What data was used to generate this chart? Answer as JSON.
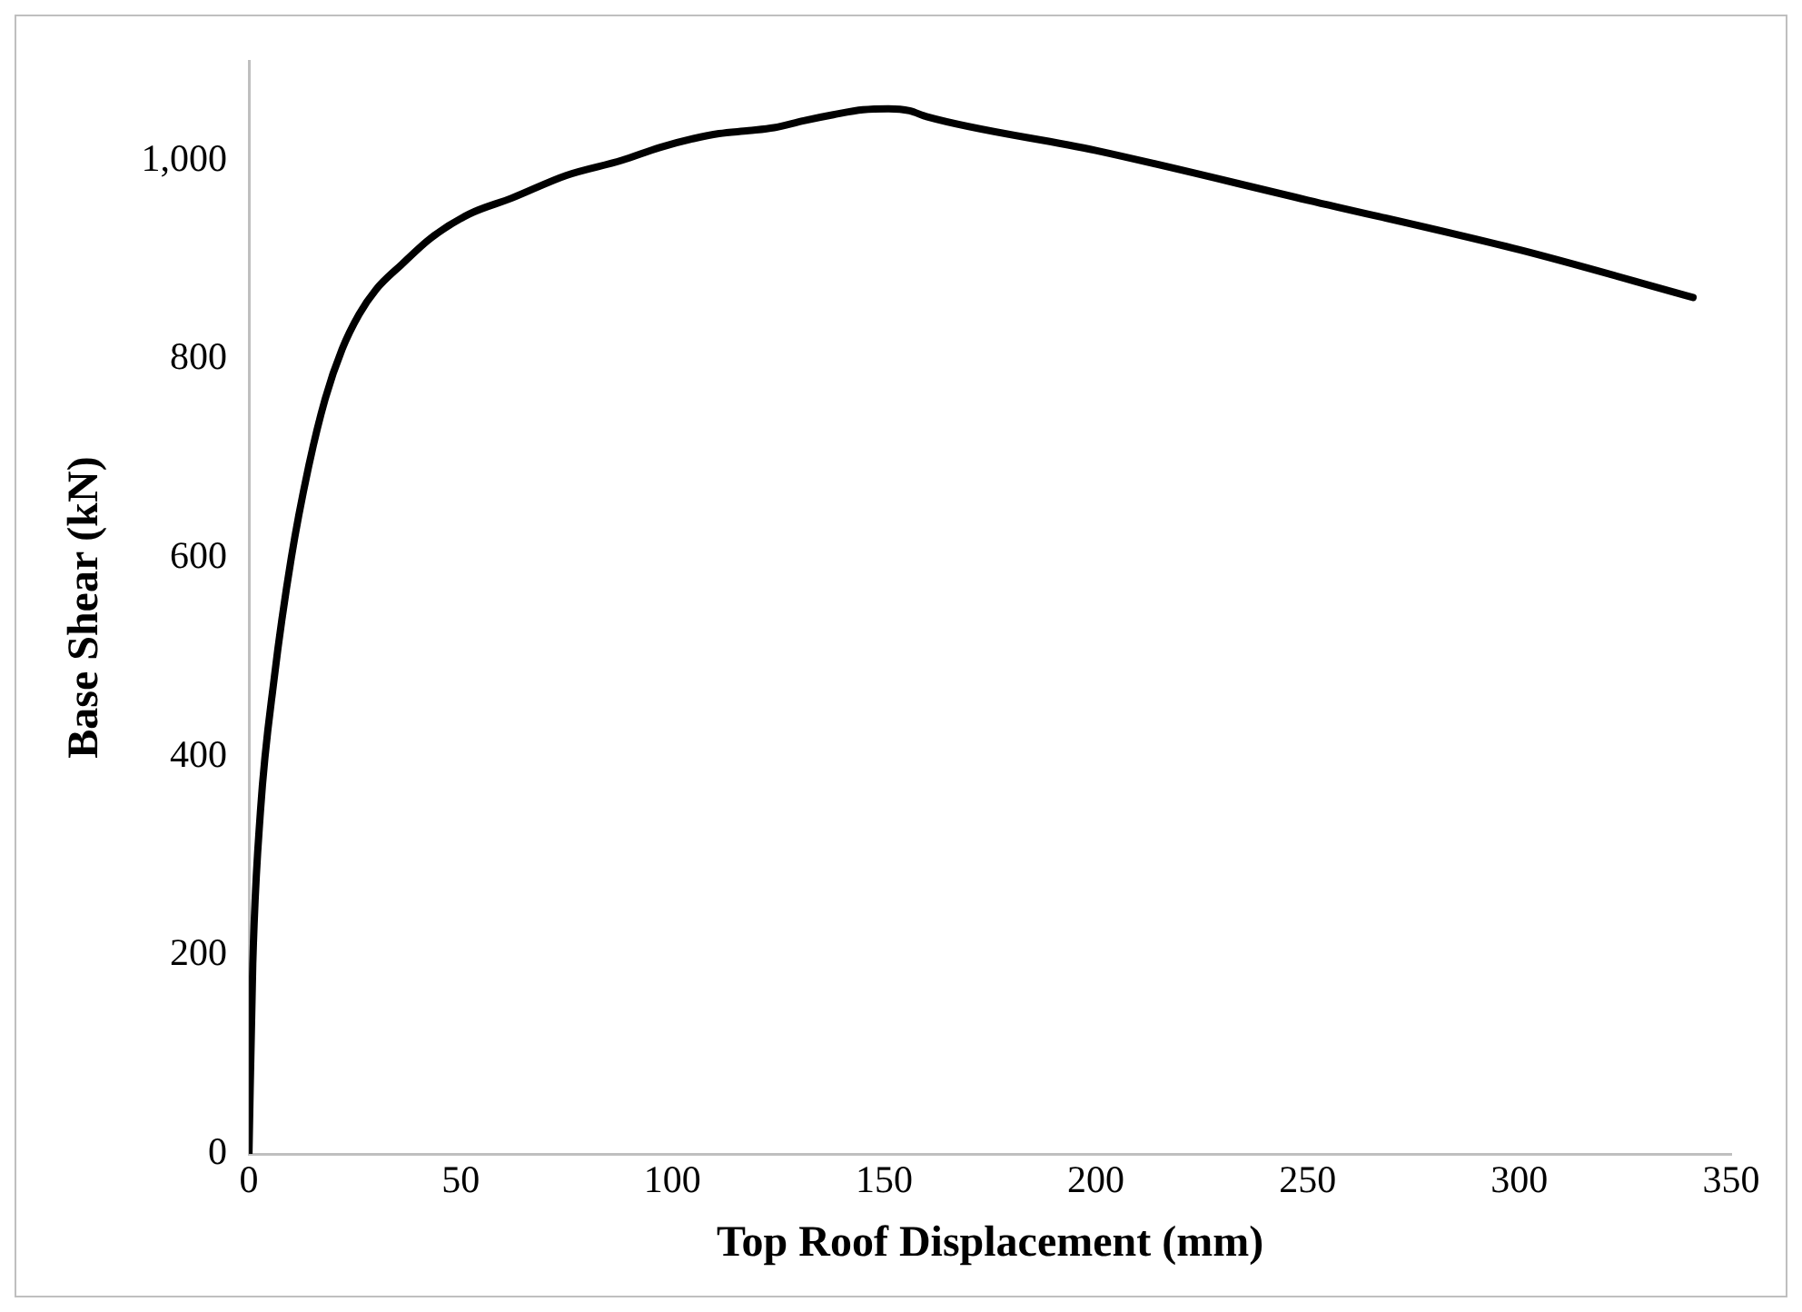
{
  "chart_data": {
    "type": "line",
    "xlabel": "Top Roof Displacement (mm)",
    "ylabel": "Base Shear (kN)",
    "xlim": [
      0,
      350
    ],
    "xticks": [
      0,
      50,
      100,
      150,
      200,
      250,
      300,
      350
    ],
    "ylim": [
      0,
      1100
    ],
    "yticks": [
      0,
      200,
      400,
      600,
      800,
      {
        "value": 1000,
        "label": "1,000"
      }
    ],
    "grid": false,
    "legend": false,
    "marker": "none",
    "line_style": "solid",
    "series": [
      {
        "color": "#000000",
        "x": [
          0,
          0.9,
          2.7,
          6,
          10,
          14,
          18,
          22,
          26,
          30,
          36,
          43,
          52,
          62,
          75,
          88,
          97,
          105,
          111,
          118,
          124,
          131,
          138,
          145,
          151,
          156,
          160,
          200,
          250,
          300,
          341
        ],
        "values": [
          0,
          191,
          344,
          480,
          600,
          690,
          760,
          810,
          845,
          870,
          895,
          922,
          946,
          962,
          985,
          1000,
          1013,
          1022,
          1027,
          1030,
          1033,
          1040,
          1046,
          1051,
          1052,
          1050,
          1044,
          1010,
          960,
          910,
          862
        ]
      }
    ]
  }
}
